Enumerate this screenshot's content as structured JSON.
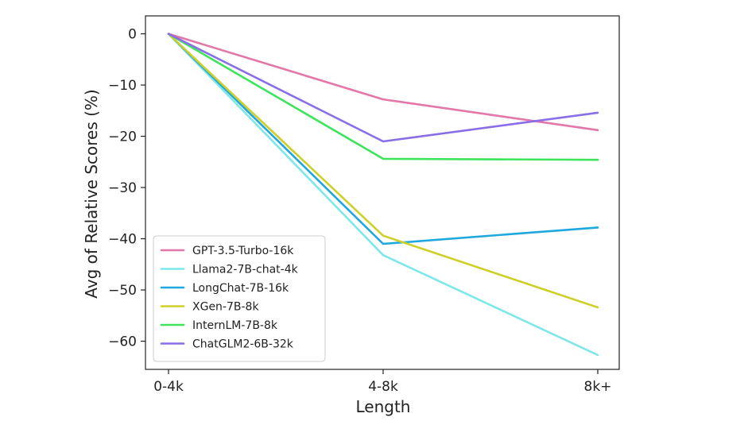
{
  "chart_data": {
    "type": "line",
    "title": "",
    "xlabel": "Length",
    "ylabel": "Avg of Relative Scores (%)",
    "categories": [
      "0-4k",
      "4-8k",
      "8k+"
    ],
    "ylim": [
      -65.5,
      3.5
    ],
    "yticks": [
      0,
      -10,
      -20,
      -30,
      -40,
      -50,
      -60
    ],
    "ytick_labels": [
      "0",
      "−10",
      "−20",
      "−30",
      "−40",
      "−50",
      "−60"
    ],
    "grid": false,
    "legend_position": "lower-left",
    "series": [
      {
        "name": "GPT-3.5-Turbo-16k",
        "color": "#e377a8",
        "values": [
          0,
          -12.8,
          -18.8
        ]
      },
      {
        "name": "Llama2-7B-chat-4k",
        "color": "#7ee7ea",
        "values": [
          0,
          -43.2,
          -62.7
        ]
      },
      {
        "name": "LongChat-7B-16k",
        "color": "#1fa8e0",
        "values": [
          0,
          -41.0,
          -37.8
        ]
      },
      {
        "name": "XGen-7B-8k",
        "color": "#cfcf2a",
        "values": [
          0,
          -39.4,
          -53.4
        ]
      },
      {
        "name": "InternLM-7B-8k",
        "color": "#3ee55c",
        "values": [
          0,
          -24.4,
          -24.6
        ]
      },
      {
        "name": "ChatGLM2-6B-32k",
        "color": "#8a6ee8",
        "values": [
          0,
          -21.0,
          -15.4
        ]
      }
    ]
  }
}
